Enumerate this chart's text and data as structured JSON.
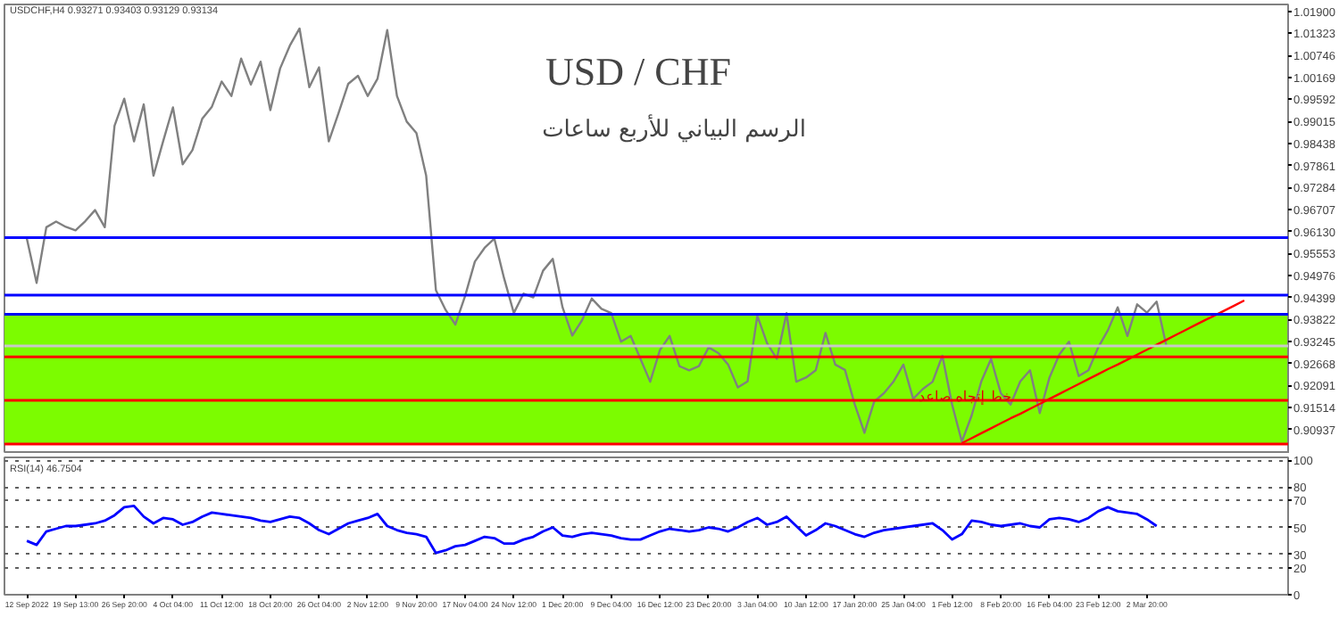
{
  "chart_data": [
    {
      "type": "line",
      "title": "USD / CHF",
      "subtitle": "الرسم البياني للأربع ساعات",
      "annotations": [
        "USDCHF,H4 0.93271 0.93403 0.93129 0.93134",
        "خط إتجاه صاعد"
      ],
      "categories": [
        null,
        null,
        null,
        null,
        null,
        null,
        null,
        null,
        null,
        null,
        null,
        null,
        null,
        null,
        null,
        null,
        null,
        null,
        null,
        null,
        null,
        null,
        null,
        null,
        null,
        null,
        null,
        null,
        null,
        null,
        null,
        null,
        null,
        null,
        null,
        null,
        null,
        null,
        null,
        null,
        null,
        null,
        null,
        null,
        null,
        null,
        null,
        null,
        null,
        null,
        null,
        null,
        null,
        null,
        null,
        null,
        null,
        null,
        null,
        null,
        null,
        null,
        null,
        null,
        null,
        null,
        null,
        null,
        null,
        null,
        null,
        null,
        null,
        null,
        null,
        null,
        null,
        null,
        null,
        null,
        null,
        null,
        null,
        null,
        null,
        null,
        null,
        null,
        null,
        null,
        null,
        null,
        null,
        null,
        null,
        null,
        null,
        null,
        null,
        null,
        null,
        null,
        null,
        null,
        null,
        null,
        null,
        null,
        null,
        null,
        null,
        null,
        null,
        null,
        null,
        null,
        null,
        null,
        null,
        null,
        null,
        null,
        null,
        null,
        null,
        null,
        null,
        null,
        null,
        null
      ],
      "series": [
        {
          "color": "#808080",
          "values": [
            0.9594,
            0.9478,
            0.9624,
            0.9639,
            0.9625,
            0.9616,
            0.964,
            0.9669,
            0.9624,
            0.989,
            0.9961,
            0.9849,
            0.9946,
            0.9759,
            0.985,
            0.9938,
            0.9789,
            0.9826,
            0.9908,
            0.994,
            1.0006,
            0.9968,
            1.0066,
            0.9998,
            1.0058,
            0.9931,
            1.004,
            1.01,
            1.0145,
            0.9991,
            1.0043,
            0.9849,
            0.9923,
            1.0,
            1.0021,
            0.9968,
            1.0013,
            1.0141,
            0.9968,
            0.9901,
            0.9871,
            0.9759,
            0.9459,
            0.9407,
            0.9369,
            0.9444,
            0.9534,
            0.957,
            0.9594,
            0.949,
            0.9399,
            0.945,
            0.944,
            0.951,
            0.9541,
            0.9414,
            0.934,
            0.938,
            0.9437,
            0.941,
            0.9399,
            0.9324,
            0.9339,
            0.9279,
            0.9219,
            0.9302,
            0.9339,
            0.926,
            0.9249,
            0.926,
            0.9309,
            0.9294,
            0.9264,
            0.9204,
            0.922,
            0.9392,
            0.932,
            0.9279,
            0.9399,
            0.9219,
            0.923,
            0.9249,
            0.9347,
            0.9264,
            0.925,
            0.916,
            0.9085,
            0.9167,
            0.9189,
            0.922,
            0.9264,
            0.9174,
            0.92,
            0.9219,
            0.9287,
            0.9159,
            0.9062,
            0.913,
            0.922,
            0.9279,
            0.9189,
            0.9159,
            0.922,
            0.9249,
            0.9137,
            0.923,
            0.929,
            0.9324,
            0.9234,
            0.9249,
            0.9309,
            0.9354,
            0.9414,
            0.9339,
            0.9422,
            0.94,
            0.9429,
            0.9313,
            null,
            null,
            null,
            null,
            null,
            null,
            null,
            null,
            null,
            null,
            null,
            null
          ]
        },
        {
          "color": "#ff0000",
          "values": [
            null,
            null,
            null,
            null,
            null,
            null,
            null,
            null,
            null,
            null,
            null,
            null,
            null,
            null,
            null,
            null,
            null,
            null,
            null,
            null,
            null,
            null,
            null,
            null,
            null,
            null,
            null,
            null,
            null,
            null,
            null,
            null,
            null,
            null,
            null,
            null,
            null,
            null,
            null,
            null,
            null,
            null,
            null,
            null,
            null,
            null,
            null,
            null,
            null,
            null,
            null,
            null,
            null,
            null,
            null,
            null,
            null,
            null,
            null,
            null,
            null,
            null,
            null,
            null,
            null,
            null,
            null,
            null,
            null,
            null,
            null,
            null,
            null,
            null,
            null,
            null,
            null,
            null,
            null,
            null,
            null,
            null,
            null,
            null,
            null,
            null,
            null,
            null,
            null,
            null,
            null,
            null,
            null,
            null,
            null,
            null,
            0.9058,
            0.9071,
            0.9084,
            0.9097,
            0.911,
            0.9123,
            0.9135,
            0.9148,
            0.9161,
            0.9174,
            0.9187,
            0.92,
            0.9213,
            0.9226,
            0.9239,
            0.9252,
            0.9264,
            0.9277,
            0.929,
            0.9303,
            0.9316,
            0.9329,
            0.9342,
            0.9355,
            0.9368,
            0.9381,
            0.9393,
            0.9406,
            0.9419,
            0.9432,
            null,
            null,
            null,
            null
          ]
        }
      ],
      "ylim": [
        0.903,
        1.0208
      ],
      "yticks": [
        {
          "value": 1.019,
          "label": "1.01900"
        },
        {
          "value": 1.01323,
          "label": "1.01323"
        },
        {
          "value": 1.00746,
          "label": "1.00746"
        },
        {
          "value": 1.00169,
          "label": "1.00169"
        },
        {
          "value": 0.99592,
          "label": "0.99592"
        },
        {
          "value": 0.99015,
          "label": "0.99015"
        },
        {
          "value": 0.98438,
          "label": "0.98438"
        },
        {
          "value": 0.97861,
          "label": "0.97861"
        },
        {
          "value": 0.97284,
          "label": "0.97284"
        },
        {
          "value": 0.96707,
          "label": "0.96707"
        },
        {
          "value": 0.9613,
          "label": "0.96130"
        },
        {
          "value": 0.95553,
          "label": "0.95553"
        },
        {
          "value": 0.94976,
          "label": "0.94976"
        },
        {
          "value": 0.94399,
          "label": "0.94399"
        },
        {
          "value": 0.93822,
          "label": "0.93822"
        },
        {
          "value": 0.93245,
          "label": "0.93245"
        },
        {
          "value": 0.92668,
          "label": "0.92668"
        },
        {
          "value": 0.92091,
          "label": "0.92091"
        },
        {
          "value": 0.91514,
          "label": "0.91514"
        },
        {
          "value": 0.90937,
          "label": "0.90937"
        }
      ],
      "ref_lines": [
        {
          "axis": "y",
          "value": 0.9597,
          "color": "#0000ff"
        },
        {
          "axis": "y",
          "value": 0.9446,
          "color": "#0000ff"
        },
        {
          "axis": "y",
          "value": 0.9396,
          "color": "#0000ff"
        },
        {
          "axis": "y",
          "value": 0.9313,
          "color": "#c8c8c8"
        },
        {
          "axis": "y",
          "value": 0.9284,
          "color": "#ff0000"
        },
        {
          "axis": "y",
          "value": 0.917,
          "color": "#ff0000"
        },
        {
          "axis": "y",
          "value": 0.9056,
          "color": "#ff0000"
        }
      ],
      "bands": [
        {
          "axis": "y",
          "from": 0.9056,
          "to": 0.9396,
          "color": "#7cfc00"
        }
      ],
      "tick_labels": "y"
    },
    {
      "type": "line",
      "annotations": [
        "RSI(14) 46.7504"
      ],
      "categories": [
        "12 Sep 2022",
        null,
        null,
        null,
        null,
        "19 Sep 13:00",
        null,
        null,
        null,
        null,
        "26 Sep 20:00",
        null,
        null,
        null,
        null,
        "4 Oct 04:00",
        null,
        null,
        null,
        null,
        "11 Oct 12:00",
        null,
        null,
        null,
        null,
        "18 Oct 20:00",
        null,
        null,
        null,
        null,
        "26 Oct 04:00",
        null,
        null,
        null,
        null,
        "2 Nov 12:00",
        null,
        null,
        null,
        null,
        "9 Nov 20:00",
        null,
        null,
        null,
        null,
        "17 Nov 04:00",
        null,
        null,
        null,
        null,
        "24 Nov 12:00",
        null,
        null,
        null,
        null,
        "1 Dec 20:00",
        null,
        null,
        null,
        null,
        "9 Dec 04:00",
        null,
        null,
        null,
        null,
        "16 Dec 12:00",
        null,
        null,
        null,
        null,
        "23 Dec 20:00",
        null,
        null,
        null,
        null,
        "3 Jan 04:00",
        null,
        null,
        null,
        null,
        "10 Jan 12:00",
        null,
        null,
        null,
        null,
        "17 Jan 20:00",
        null,
        null,
        null,
        null,
        "25 Jan 04:00",
        null,
        null,
        null,
        null,
        "1 Feb 12:00",
        null,
        null,
        null,
        null,
        "8 Feb 20:00",
        null,
        null,
        null,
        null,
        "16 Feb 04:00",
        null,
        null,
        null,
        null,
        "23 Feb 12:00",
        null,
        null,
        null,
        null,
        "2 Mar 20:00",
        null,
        null,
        null,
        null,
        null,
        null,
        null,
        null,
        null,
        null,
        null,
        null,
        null,
        null
      ],
      "series": [
        {
          "color": "#0000ff",
          "values": [
            40,
            37,
            47,
            49,
            51,
            51,
            52,
            53,
            55,
            59,
            65,
            66,
            58,
            53,
            57,
            56,
            52,
            54,
            58,
            61,
            60,
            59,
            58,
            57,
            55,
            54,
            56,
            58,
            57,
            53,
            48,
            45,
            49,
            53,
            55,
            57,
            60,
            51,
            48,
            46,
            45,
            43,
            31,
            33,
            36,
            37,
            40,
            43,
            42,
            38,
            38,
            41,
            43,
            47,
            50,
            44,
            43,
            45,
            46,
            45,
            44,
            42,
            41,
            41,
            44,
            47,
            49,
            48,
            47,
            48,
            50,
            49,
            47,
            50,
            54,
            57,
            52,
            54,
            58,
            51,
            44,
            48,
            53,
            51,
            48,
            45,
            43,
            46,
            48,
            49,
            50,
            51,
            52,
            53,
            48,
            41,
            45,
            55,
            54,
            52,
            51,
            52,
            53,
            51,
            50,
            56,
            57,
            56,
            54,
            57,
            62,
            65,
            62,
            61,
            60,
            56,
            51,
            null,
            null,
            null,
            null,
            null,
            null,
            null,
            null,
            null,
            null,
            null,
            null,
            null
          ]
        }
      ],
      "ylim": [
        0,
        102
      ],
      "yticks": [
        0,
        20,
        30,
        50,
        70,
        80,
        100
      ],
      "grid": "y"
    }
  ]
}
